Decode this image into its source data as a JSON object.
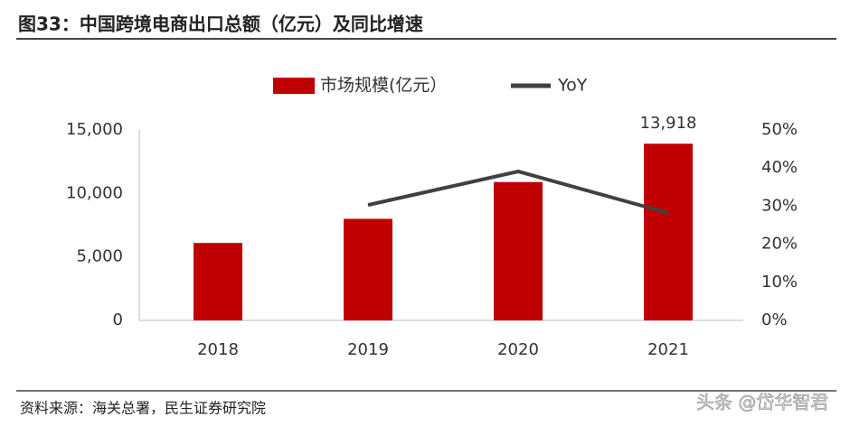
{
  "chart_data": {
    "type": "bar",
    "title": "图33：中国跨境电商出口总额（亿元）及同比增速",
    "source": "资料来源：海关总署，民生证券研究院",
    "watermark": "头条 @岱华智君",
    "categories": [
      "2018",
      "2019",
      "2020",
      "2021"
    ],
    "series": [
      {
        "name": "市场规模(亿元）",
        "type": "bar",
        "color": "#c00000",
        "values": [
          6100,
          8000,
          10900,
          13918
        ],
        "value_labels": [
          null,
          null,
          null,
          "13,918"
        ]
      },
      {
        "name": "YoY",
        "type": "line",
        "axis": "y2",
        "color": "#404040",
        "values": [
          null,
          30.3,
          39.1,
          28.2
        ]
      }
    ],
    "ylim": [
      0,
      15000
    ],
    "yticks": [
      0,
      {
        "value": 5000,
        "label": "5,000"
      },
      {
        "value": 10000,
        "label": "10,000"
      },
      {
        "value": 15000,
        "label": "15,000"
      }
    ],
    "y2lim": [
      0,
      50
    ],
    "y2ticks": [
      {
        "value": 0,
        "label": "0%"
      },
      {
        "value": 10,
        "label": "10%"
      },
      {
        "value": 20,
        "label": "20%"
      },
      {
        "value": 30,
        "label": "30%"
      },
      {
        "value": 40,
        "label": "40%"
      },
      {
        "value": 50,
        "label": "50%"
      }
    ],
    "grid": false,
    "legend": "top"
  }
}
